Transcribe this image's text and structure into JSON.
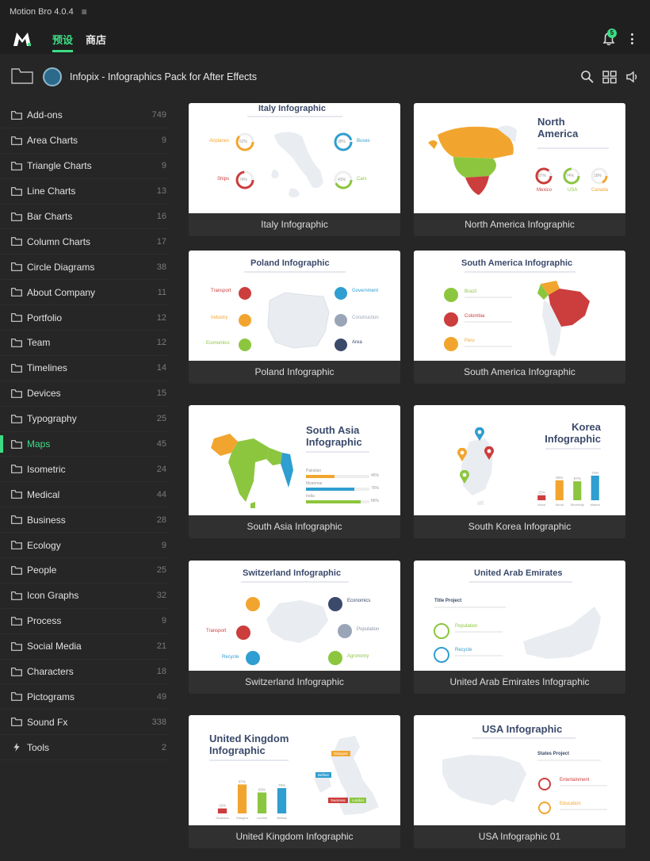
{
  "app": {
    "title": "Motion Bro 4.0.4"
  },
  "topnav": {
    "tabs": [
      {
        "label": "预设"
      },
      {
        "label": "商店"
      }
    ],
    "notification_count": "5"
  },
  "header": {
    "pack_title": "Infopix - Infographics Pack for After Effects"
  },
  "sidebar": {
    "items": [
      {
        "label": "Add-ons",
        "count": "749"
      },
      {
        "label": "Area Charts",
        "count": "9"
      },
      {
        "label": "Triangle Charts",
        "count": "9"
      },
      {
        "label": "Line Charts",
        "count": "13"
      },
      {
        "label": "Bar Charts",
        "count": "16"
      },
      {
        "label": "Column Charts",
        "count": "17"
      },
      {
        "label": "Circle Diagrams",
        "count": "38"
      },
      {
        "label": "About Company",
        "count": "11"
      },
      {
        "label": "Portfolio",
        "count": "12"
      },
      {
        "label": "Team",
        "count": "12"
      },
      {
        "label": "Timelines",
        "count": "14"
      },
      {
        "label": "Devices",
        "count": "15"
      },
      {
        "label": "Typography",
        "count": "25"
      },
      {
        "label": "Maps",
        "count": "45"
      },
      {
        "label": "Isometric",
        "count": "24"
      },
      {
        "label": "Medical",
        "count": "44"
      },
      {
        "label": "Business",
        "count": "28"
      },
      {
        "label": "Ecology",
        "count": "9"
      },
      {
        "label": "People",
        "count": "25"
      },
      {
        "label": "Icon Graphs",
        "count": "32"
      },
      {
        "label": "Process",
        "count": "9"
      },
      {
        "label": "Social Media",
        "count": "21"
      },
      {
        "label": "Characters",
        "count": "18"
      },
      {
        "label": "Pictograms",
        "count": "49"
      },
      {
        "label": "Sound Fx",
        "count": "338"
      },
      {
        "label": "Tools",
        "count": "2"
      }
    ],
    "active_index": 13
  },
  "grid": {
    "cards": [
      {
        "caption": "Italy Infographic",
        "thumb_title": "Italy Infographic",
        "labels": [
          "Airplanes",
          "Buses",
          "Ships",
          "Cars"
        ],
        "values": [
          "62%",
          "98%",
          "74%",
          "43%"
        ]
      },
      {
        "caption": "North America Infographic",
        "thumb_title": "North America",
        "labels": [
          "Mexico",
          "USA",
          "Canada"
        ],
        "values": [
          "87%",
          "74%",
          "18%"
        ]
      },
      {
        "caption": "Poland Infographic",
        "thumb_title": "Poland Infographic",
        "labels": [
          "Transport",
          "Industry",
          "Economics",
          "Government",
          "Construction",
          "Area"
        ]
      },
      {
        "caption": "South America Infographic",
        "thumb_title": "South America Infographic",
        "labels": [
          "Brazil",
          "Colombia",
          "Peru"
        ]
      },
      {
        "caption": "South Asia Infographic",
        "thumb_title": "South Asia Infographic",
        "labels": [
          "Pakistan",
          "Myanmar",
          "India"
        ],
        "values": [
          "45%",
          "76%",
          "86%"
        ]
      },
      {
        "caption": "South Korea Infographic",
        "thumb_title": "Korea Infographic",
        "labels": [
          "Mood",
          "Seoul",
          "Electricity",
          "Market"
        ],
        "values": [
          "15%",
          "60%",
          "57%",
          "74%"
        ]
      },
      {
        "caption": "Switzerland Infographic",
        "thumb_title": "Switzerland Infographic",
        "labels": [
          "Transport",
          "Recycle",
          "Economics",
          "Population",
          "Agronomy"
        ]
      },
      {
        "caption": "United Arab Emirates Infographic",
        "thumb_title": "United Arab Emirates",
        "labels": [
          "Title Project",
          "Population",
          "Recycle"
        ]
      },
      {
        "caption": "United Kingdom Infographic",
        "thumb_title": "United Kingdom Infographic",
        "labels": [
          "Swansea",
          "Glasgow",
          "London",
          "Belfast"
        ],
        "values": [
          "15%",
          "87%",
          "63%",
          "76%"
        ],
        "map_labels": [
          "Glasgow",
          "Belfast",
          "Swansea",
          "London"
        ]
      },
      {
        "caption": "USA Infographic 01",
        "thumb_title": "USA Infographic",
        "labels": [
          "States Project",
          "Entertainment",
          "Education"
        ]
      }
    ]
  },
  "colors": {
    "accent": "#3ddc84",
    "orange": "#f2a52e",
    "red": "#cc3d3d",
    "blue": "#2f9ed0",
    "green": "#8cc63f",
    "navy": "#3b4a6b"
  }
}
